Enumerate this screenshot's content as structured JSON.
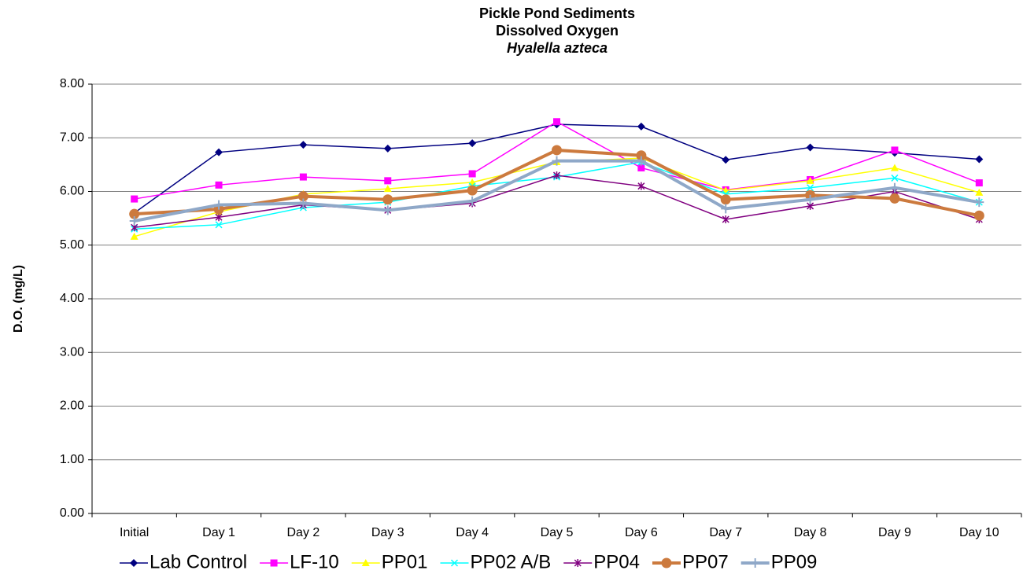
{
  "chart_data": {
    "type": "line",
    "title": [
      "Pickle Pond Sediments",
      "Dissolved Oxygen",
      "Hyalella azteca"
    ],
    "y_label": "D.O. (mg/L)",
    "categories": [
      "Initial",
      "Day 1",
      "Day 2",
      "Day 3",
      "Day 4",
      "Day 5",
      "Day 6",
      "Day 7",
      "Day 8",
      "Day 9",
      "Day 10"
    ],
    "ylim": [
      0,
      8
    ],
    "yticks": [
      {
        "value": 0,
        "label": "0.00"
      },
      {
        "value": 1,
        "label": "1.00"
      },
      {
        "value": 2,
        "label": "2.00"
      },
      {
        "value": 3,
        "label": "3.00"
      },
      {
        "value": 4,
        "label": "4.00"
      },
      {
        "value": 5,
        "label": "5.00"
      },
      {
        "value": 6,
        "label": "6.00"
      },
      {
        "value": 7,
        "label": "7.00"
      },
      {
        "value": 8,
        "label": "8.00"
      }
    ],
    "grid": true,
    "legend": "bottom",
    "series": [
      {
        "name": "Lab Control",
        "color": "#000080",
        "marker": "diamond",
        "values": [
          5.6,
          6.73,
          6.87,
          6.8,
          6.9,
          7.25,
          7.21,
          6.59,
          6.82,
          6.72,
          6.6
        ]
      },
      {
        "name": "LF-10",
        "color": "#ff00ff",
        "marker": "square",
        "values": [
          5.86,
          6.12,
          6.27,
          6.2,
          6.33,
          7.3,
          6.44,
          6.03,
          6.22,
          6.77,
          6.16
        ]
      },
      {
        "name": "PP01",
        "color": "#ffff00",
        "marker": "triangle",
        "values": [
          5.16,
          5.62,
          5.95,
          6.05,
          6.17,
          6.55,
          6.62,
          6.02,
          6.2,
          6.44,
          5.98
        ]
      },
      {
        "name": "PP02 A/B",
        "color": "#00ffff",
        "marker": "x",
        "values": [
          5.3,
          5.38,
          5.7,
          5.8,
          6.1,
          6.27,
          6.55,
          5.95,
          6.07,
          6.25,
          5.8
        ]
      },
      {
        "name": "PP04",
        "color": "#800080",
        "marker": "star",
        "values": [
          5.33,
          5.52,
          5.75,
          5.65,
          5.78,
          6.3,
          6.1,
          5.48,
          5.73,
          6.0,
          5.48
        ]
      },
      {
        "name": "PP07",
        "color": "#cc7a3e",
        "marker": "circle",
        "line_width": 4,
        "values": [
          5.58,
          5.67,
          5.91,
          5.85,
          6.02,
          6.77,
          6.67,
          5.85,
          5.93,
          5.87,
          5.55
        ]
      },
      {
        "name": "PP09",
        "color": "#8fa8c8",
        "marker": "plus",
        "line_width": 4,
        "values": [
          5.45,
          5.75,
          5.78,
          5.65,
          5.82,
          6.57,
          6.57,
          5.68,
          5.85,
          6.07,
          5.8
        ]
      }
    ]
  }
}
